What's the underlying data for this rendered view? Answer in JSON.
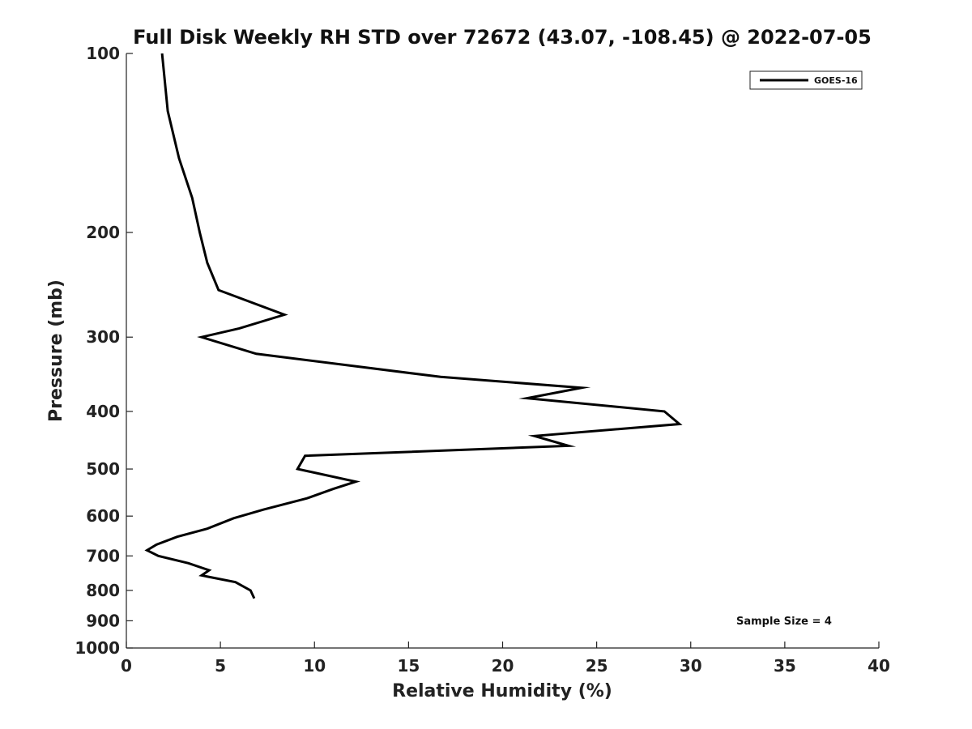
{
  "chart_data": {
    "type": "line",
    "title": "Full Disk Weekly RH STD over 72672 (43.07, -108.45) @ 2022-07-05",
    "xlabel": "Relative Humidity (%)",
    "ylabel": "Pressure (mb)",
    "xlim": [
      0,
      40
    ],
    "ylim": [
      100,
      1000
    ],
    "y_scale": "log",
    "y_inverted": true,
    "grid": false,
    "legend_position": "top-right",
    "x_ticks": [
      0,
      5,
      10,
      15,
      20,
      25,
      30,
      35,
      40
    ],
    "x_tick_labels": [
      "0",
      "5",
      "10",
      "15",
      "20",
      "25",
      "30",
      "35",
      "40"
    ],
    "y_ticks": [
      100,
      200,
      300,
      400,
      500,
      600,
      700,
      800,
      900,
      1000
    ],
    "y_tick_labels": [
      "100",
      "200",
      "300",
      "400",
      "500",
      "600",
      "700",
      "800",
      "900",
      "1000"
    ],
    "series": [
      {
        "name": "GOES-16",
        "color": "#000000",
        "points": [
          {
            "x": 1.9,
            "y": 100
          },
          {
            "x": 2.2,
            "y": 125
          },
          {
            "x": 2.8,
            "y": 150
          },
          {
            "x": 3.5,
            "y": 175
          },
          {
            "x": 3.9,
            "y": 200
          },
          {
            "x": 4.3,
            "y": 225
          },
          {
            "x": 4.9,
            "y": 250
          },
          {
            "x": 8.4,
            "y": 275
          },
          {
            "x": 6.0,
            "y": 290
          },
          {
            "x": 4.0,
            "y": 300
          },
          {
            "x": 6.9,
            "y": 320
          },
          {
            "x": 16.7,
            "y": 350
          },
          {
            "x": 24.2,
            "y": 365
          },
          {
            "x": 21.3,
            "y": 380
          },
          {
            "x": 28.6,
            "y": 400
          },
          {
            "x": 29.4,
            "y": 420
          },
          {
            "x": 21.7,
            "y": 440
          },
          {
            "x": 23.5,
            "y": 457
          },
          {
            "x": 9.5,
            "y": 475
          },
          {
            "x": 9.1,
            "y": 500
          },
          {
            "x": 12.2,
            "y": 525
          },
          {
            "x": 11.0,
            "y": 540
          },
          {
            "x": 9.6,
            "y": 560
          },
          {
            "x": 7.3,
            "y": 585
          },
          {
            "x": 5.7,
            "y": 605
          },
          {
            "x": 4.3,
            "y": 630
          },
          {
            "x": 2.7,
            "y": 650
          },
          {
            "x": 1.6,
            "y": 670
          },
          {
            "x": 1.1,
            "y": 685
          },
          {
            "x": 1.7,
            "y": 700
          },
          {
            "x": 3.3,
            "y": 720
          },
          {
            "x": 4.4,
            "y": 740
          },
          {
            "x": 4.0,
            "y": 755
          },
          {
            "x": 5.8,
            "y": 775
          },
          {
            "x": 6.6,
            "y": 800
          },
          {
            "x": 6.8,
            "y": 825
          }
        ]
      }
    ],
    "annotations": [
      {
        "text": "Sample Size = 4"
      }
    ]
  }
}
